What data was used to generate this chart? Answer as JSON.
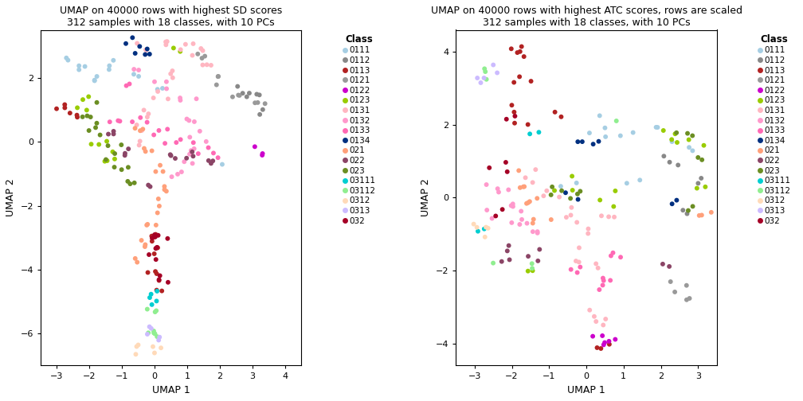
{
  "title1": "UMAP on 40000 rows with highest SD scores\n312 samples with 18 classes, with 10 PCs",
  "title2": "UMAP on 40000 rows with highest ATC scores, rows are scaled\n312 samples with 18 classes, with 10 PCs",
  "xlabel": "UMAP 1",
  "ylabel": "UMAP 2",
  "legend_title": "Class",
  "classes": [
    "0111",
    "0112",
    "0113",
    "0121",
    "0122",
    "0123",
    "0131",
    "0132",
    "0133",
    "0134",
    "021",
    "022",
    "023",
    "03111",
    "03112",
    "0312",
    "0313",
    "032"
  ],
  "colors": {
    "0111": "#A6CEE3",
    "0112": "#888888",
    "0113": "#B22222",
    "0121": "#999999",
    "0122": "#CC00CC",
    "0123": "#99CC00",
    "0131": "#FFB6C1",
    "0132": "#FF99CC",
    "0133": "#FF69B4",
    "0134": "#003080",
    "021": "#FFA07A",
    "022": "#8B4566",
    "023": "#6B8E23",
    "03111": "#00CED1",
    "03112": "#90EE90",
    "0312": "#FFDAB9",
    "0313": "#CCBBFF",
    "032": "#A50026"
  },
  "plot1": {
    "xlim": [
      -3.5,
      4.5
    ],
    "ylim": [
      -7.0,
      3.5
    ],
    "xticks": [
      -3,
      -2,
      -1,
      0,
      1,
      2,
      3,
      4
    ],
    "yticks": [
      -6,
      -4,
      -2,
      0,
      2
    ]
  },
  "plot2": {
    "xlim": [
      -3.5,
      3.5
    ],
    "ylim": [
      -4.6,
      4.6
    ],
    "xticks": [
      -3,
      -2,
      -1,
      0,
      1,
      2,
      3
    ],
    "yticks": [
      -4,
      -2,
      0,
      2,
      4
    ]
  },
  "point_size": 18,
  "marker": "o",
  "alpha": 1.0
}
